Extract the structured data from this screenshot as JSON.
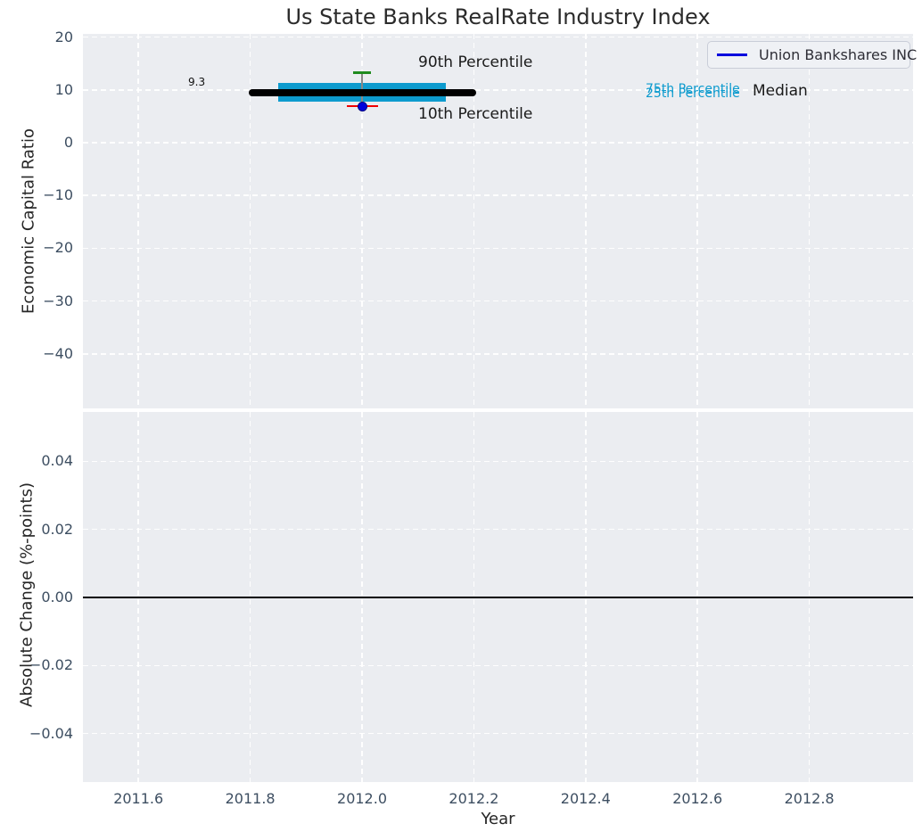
{
  "figure": {
    "title": "Us State Banks RealRate Industry Index"
  },
  "colors": {
    "plot_background": "#ebedf1",
    "grid": "#ffffff",
    "tick_text": "#3d4e61",
    "accent_cyan": "#0d9bce",
    "accent_green": "#1f8b1f",
    "accent_red": "#ee0000",
    "accent_blue": "#0000dd",
    "median_black": "#000000",
    "whisker_gray": "#888888"
  },
  "legend": {
    "label": "Union Bankshares INC",
    "line_color": "#0000dd"
  },
  "chart_data": [
    {
      "type": "box",
      "title": "Us State Banks RealRate Industry Index",
      "ylabel": "Economic Capital Ratio",
      "xlabel": "",
      "xlim": [
        2011.5,
        2012.99
      ],
      "ylim": [
        -50.3,
        20.6
      ],
      "grid": true,
      "xticks": [
        2011.6,
        2011.8,
        2012.0,
        2012.2,
        2012.4,
        2012.6,
        2012.8
      ],
      "xtick_labels": [
        "2011.6",
        "2011.8",
        "2012.0",
        "2012.2",
        "2012.4",
        "2012.6",
        "2012.8"
      ],
      "xtick_labels_visible": false,
      "yticks": [
        20,
        10,
        0,
        -10,
        -20,
        -30,
        -40
      ],
      "ytick_labels": [
        "20",
        "10",
        "0",
        "−10",
        "−20",
        "−30",
        "−40"
      ],
      "box": {
        "x": 2012.0,
        "p90": 13.3,
        "p75": 11.4,
        "median": 9.3,
        "p25": 7.8,
        "p10": 6.9,
        "box_color": "#0d9bce",
        "median_color": "#000000",
        "p90_cap_color": "#1f8b1f",
        "p10_cap_color": "#ee0000",
        "whisker_color": "#888888"
      },
      "company_point": {
        "name": "Union Bankshares INC",
        "x": 2012.0,
        "y": 6.8,
        "color": "#0000dd"
      },
      "annotations": {
        "median_value": {
          "text": "9.3",
          "color": "#111111"
        },
        "p90": {
          "text": "90th Percentile",
          "color": "#1a1a1a"
        },
        "p10": {
          "text": "10th Percentile",
          "color": "#1a1a1a"
        },
        "p75": {
          "text": "75th Percentile",
          "color": "#0d9bce"
        },
        "p25": {
          "text": "25th Percentile",
          "color": "#0d9bce"
        },
        "median": {
          "text": "Median",
          "color": "#1a1a1a"
        }
      },
      "legend_entries": [
        "Union Bankshares INC"
      ],
      "legend_position": "upper right"
    },
    {
      "type": "line",
      "ylabel": "Absolute Change (%-points)",
      "xlabel": "Year",
      "xlim": [
        2011.5,
        2012.99
      ],
      "ylim": [
        -0.054,
        0.054
      ],
      "grid": true,
      "xticks": [
        2011.6,
        2011.8,
        2012.0,
        2012.2,
        2012.4,
        2012.6,
        2012.8
      ],
      "xtick_labels": [
        "2011.6",
        "2011.8",
        "2012.0",
        "2012.2",
        "2012.4",
        "2012.6",
        "2012.8"
      ],
      "xtick_labels_visible": true,
      "yticks": [
        0.04,
        0.02,
        0.0,
        -0.02,
        -0.04
      ],
      "ytick_labels": [
        "0.04",
        "0.02",
        "0.00",
        "−0.02",
        "−0.04"
      ],
      "zero_line": {
        "y": 0.0,
        "color": "#000000"
      },
      "series": []
    }
  ]
}
